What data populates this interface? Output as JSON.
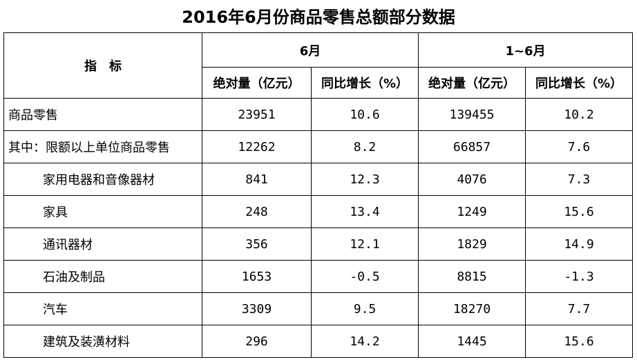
{
  "title": "2016年6月份商品零售总额部分数据",
  "table": {
    "header": {
      "indicator": "指　标",
      "groups": [
        "6月",
        "1~6月"
      ],
      "subheaders": [
        "绝对量（亿元）",
        "同比增长（%）",
        "绝对量（亿元）",
        "同比增长（%）"
      ]
    },
    "rows": [
      [
        "商品零售",
        "23951",
        "10.6",
        "139455",
        "10.2"
      ],
      [
        "其中：限额以上单位商品零售",
        "12262",
        "8.2",
        "66857",
        "7.6"
      ],
      [
        "家用电器和音像器材",
        "841",
        "12.3",
        "4076",
        "7.3"
      ],
      [
        "家具",
        "248",
        "13.4",
        "1249",
        "15.6"
      ],
      [
        "通讯器材",
        "356",
        "12.1",
        "1829",
        "14.9"
      ],
      [
        "石油及制品",
        "1653",
        "-0.5",
        "8815",
        "-1.3"
      ],
      [
        "汽车",
        "3309",
        "9.5",
        "18270",
        "7.7"
      ],
      [
        "建筑及装潢材料",
        "296",
        "14.2",
        "1445",
        "15.6"
      ]
    ]
  }
}
